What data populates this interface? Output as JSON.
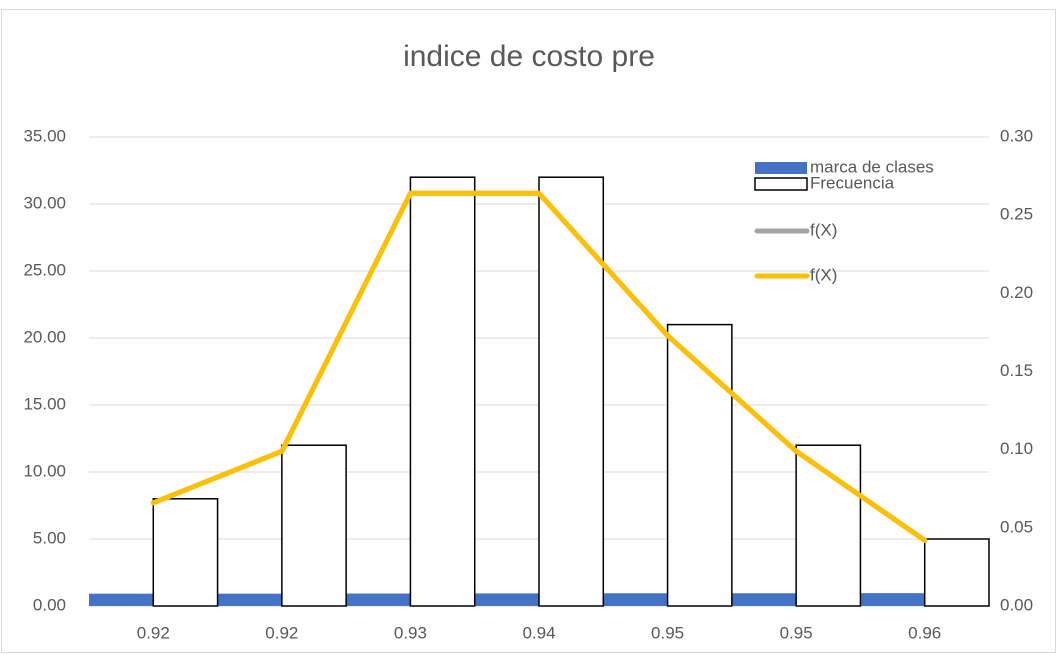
{
  "chart_data": {
    "type": "bar",
    "title": "indice de costo pre",
    "categories": [
      "0.92",
      "0.92",
      "0.93",
      "0.94",
      "0.95",
      "0.95",
      "0.96"
    ],
    "series": [
      {
        "name": "marca de clases",
        "type": "bar",
        "color": "#4472c4",
        "values": [
          0.92,
          0.92,
          0.93,
          0.94,
          0.95,
          0.95,
          0.96
        ]
      },
      {
        "name": "Frecuencia",
        "type": "bar",
        "color": "#ffffff",
        "values": [
          8,
          12,
          32,
          32,
          21,
          12,
          5
        ]
      },
      {
        "name": "f(X)",
        "type": "line",
        "axis": "y2",
        "color": "#a5a5a5",
        "values": [
          0.066,
          0.099,
          0.264,
          0.264,
          0.173,
          0.099,
          0.042
        ]
      },
      {
        "name": "f(X)",
        "type": "line",
        "axis": "y2",
        "color": "#ffc000",
        "values": [
          0.066,
          0.099,
          0.264,
          0.264,
          0.173,
          0.099,
          0.042
        ]
      }
    ],
    "ylim": [
      0,
      35
    ],
    "yticks": [
      {
        "value": 0,
        "label": "0.00"
      },
      {
        "value": 5,
        "label": "5.00"
      },
      {
        "value": 10,
        "label": "10.00"
      },
      {
        "value": 15,
        "label": "15.00"
      },
      {
        "value": 20,
        "label": "20.00"
      },
      {
        "value": 25,
        "label": "25.00"
      },
      {
        "value": 30,
        "label": "30.00"
      },
      {
        "value": 35,
        "label": "35.00"
      }
    ],
    "y2lim": [
      0,
      0.3
    ],
    "y2ticks": [
      {
        "value": 0,
        "label": "0.00"
      },
      {
        "value": 0.05,
        "label": "0.05"
      },
      {
        "value": 0.1,
        "label": "0.10"
      },
      {
        "value": 0.15,
        "label": "0.15"
      },
      {
        "value": 0.2,
        "label": "0.20"
      },
      {
        "value": 0.25,
        "label": "0.25"
      },
      {
        "value": 0.3,
        "label": "0.30"
      }
    ],
    "grid": true,
    "legend": "top-right"
  }
}
